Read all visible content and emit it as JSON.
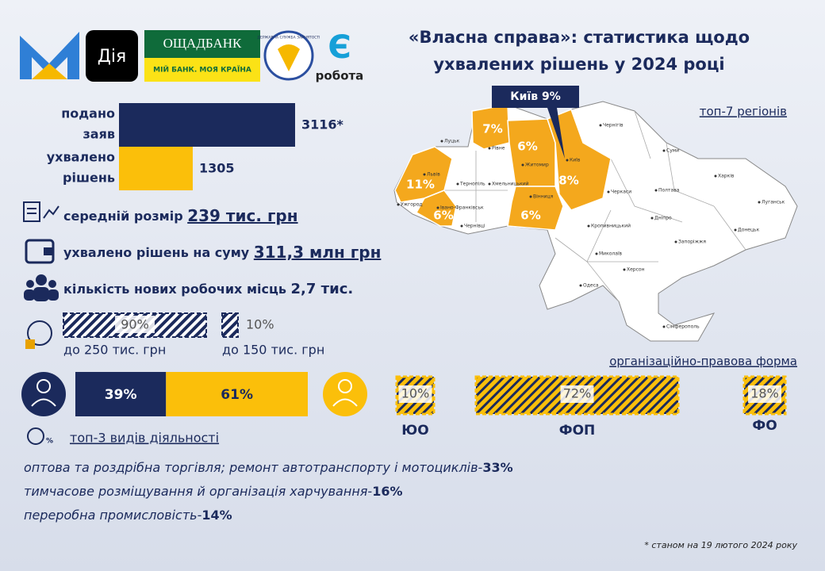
{
  "logos": {
    "diia": "Дія",
    "bank_name": "ОЩАДБАНК",
    "bank_slogan": "МІЙ БАНК. МОЯ КРАЇНА",
    "employment_service": "ДЕРЖАВНА СЛУЖБА ЗАЙНЯТОСТІ",
    "robota_letter": "Є",
    "robota": "робота"
  },
  "title": [
    "«Власна справа»: статистика щодо",
    "ухвалених рішень у 2024 році"
  ],
  "applications": {
    "categories": [
      [
        "подано",
        "заяв"
      ],
      [
        "ухвалено",
        "рішень"
      ]
    ],
    "values": [
      3116,
      1305
    ],
    "value_labels": [
      "3116*",
      "1305"
    ],
    "colors": [
      "#1b2a5c",
      "#fbbf0a"
    ]
  },
  "stats": [
    {
      "label": "середній розмір",
      "value": "239 тис. грн"
    },
    {
      "label": "ухвалено рішень на суму",
      "value": "311,3 млн грн"
    },
    {
      "label": "кількість нових робочих місць",
      "value": "2,7 тис."
    }
  ],
  "grant_size": {
    "values": [
      90,
      10
    ],
    "value_labels": [
      "90%",
      "10%"
    ],
    "categories": [
      "до 250 тис. грн",
      "до 150 тис. грн"
    ]
  },
  "gender": {
    "values": [
      39,
      61
    ],
    "value_labels": [
      "39%",
      "61%"
    ],
    "colors": [
      "#1b2a5c",
      "#fbbf0a"
    ]
  },
  "regions": {
    "heading": "топ-7 регіонів",
    "callout": "Київ 9%",
    "shares": [
      "7%",
      "6%",
      "8%",
      "11%",
      "6%",
      "6%"
    ]
  },
  "cities": [
    "Луцьк",
    "Рівне",
    "Житомир",
    "Київ",
    "Чернігів",
    "Суми",
    "Харків",
    "Полтава",
    "Черкаси",
    "Вінниця",
    "Львів",
    "Тернопіль",
    "Хмельницький",
    "Ужгород",
    "Івано-Франківськ",
    "Чернівці",
    "Кропивницький",
    "Дніпро",
    "Луганськ",
    "Донецьк",
    "Запоріжжя",
    "Миколаїв",
    "Херсон",
    "Одеса",
    "Сімферополь"
  ],
  "legal_form": {
    "heading": "організаційно-правова форма",
    "items": [
      {
        "share": "10%",
        "label": "ЮО"
      },
      {
        "share": "72%",
        "label": "ФОП"
      },
      {
        "share": "18%",
        "label": "ФО"
      }
    ]
  },
  "activities": {
    "heading": "топ-3 видів діяльності",
    "items": [
      {
        "text": "оптова та роздрібна торгівля; ремонт автотранспорту і мотоциклів-",
        "share": "33%"
      },
      {
        "text": "тимчасове розміщування й організація харчування-",
        "share": "16%"
      },
      {
        "text": "переробна промисловість-",
        "share": "14%"
      }
    ]
  },
  "footnote": "* станом на 19 лютого 2024 року"
}
